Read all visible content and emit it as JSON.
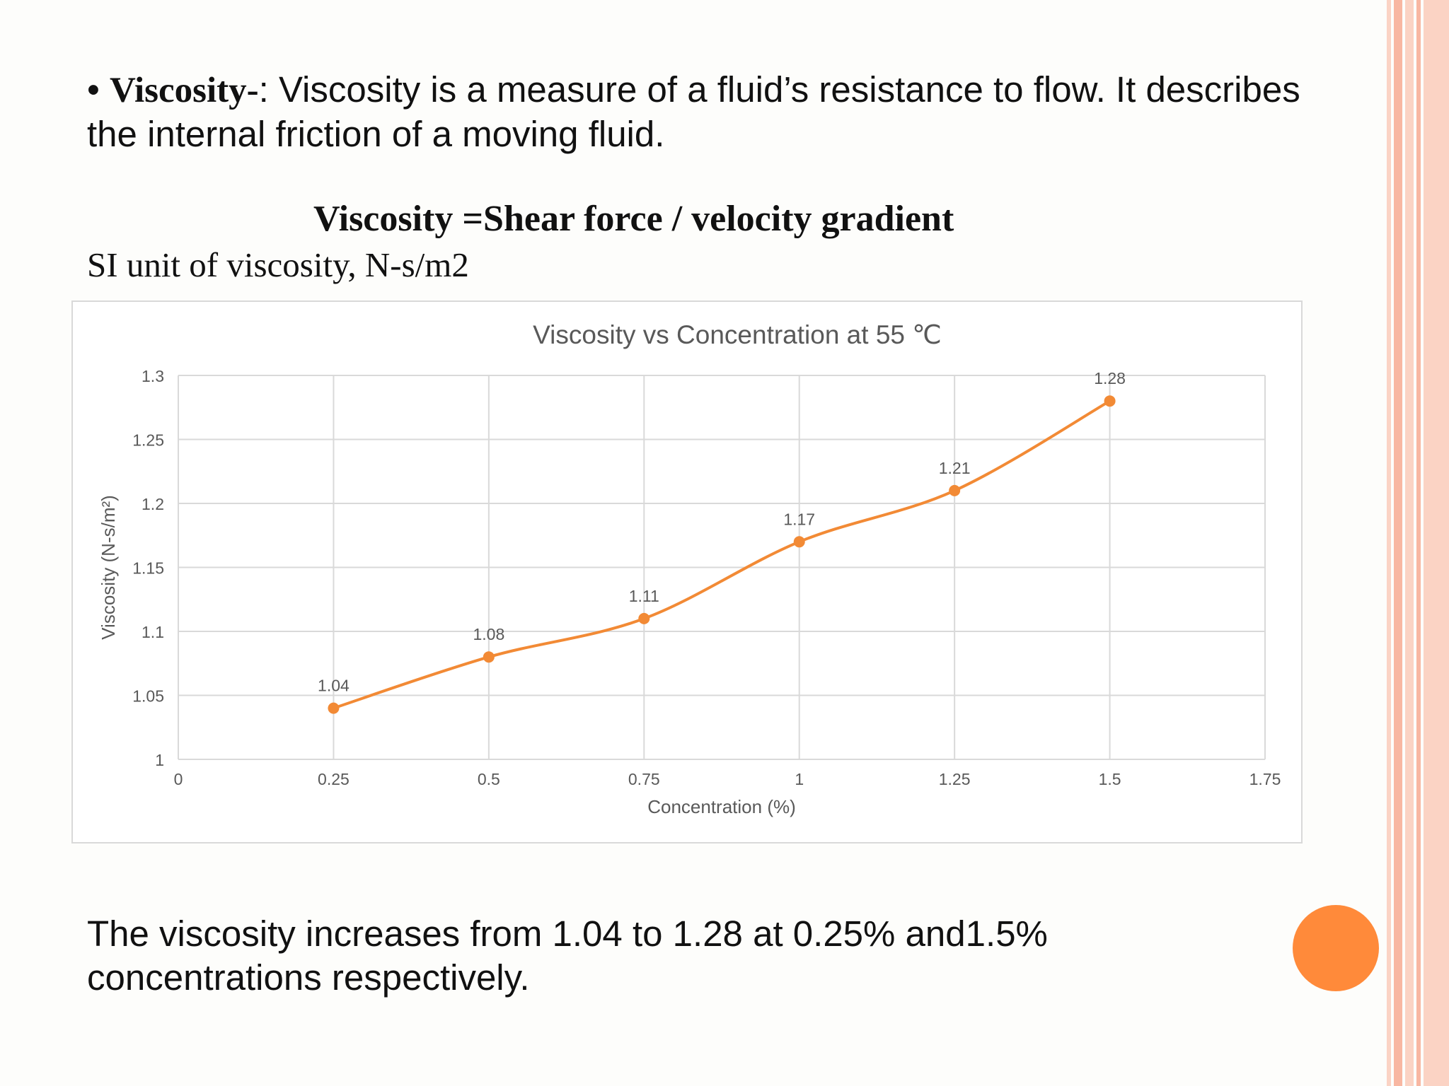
{
  "slide": {
    "bullet": "•",
    "term": "Viscosity-",
    "definition": ": Viscosity is a measure of a fluid’s resistance to flow. It describes the internal friction of a moving fluid.",
    "formula": "Viscosity =Shear force / velocity gradient",
    "si_unit": "SI unit of viscosity, N-s/m2",
    "conclusion": "The viscosity increases from 1.04 to 1.28 at 0.25% and1.5% concentrations respectively."
  },
  "colors": {
    "series": "#f28a35",
    "accent_circle": "#ff8a3a",
    "stripe_light": "#fbd3c4",
    "stripe_mid": "#f8b7a2",
    "grid": "#d9d9d9",
    "axis_text": "#595959",
    "title_text": "#595959"
  },
  "chart_data": {
    "type": "line",
    "title": "Viscosity vs Concentration at 55 ℃",
    "xlabel": "Concentration (%)",
    "ylabel": "Viscosity (N-s/m²)",
    "x": [
      0.25,
      0.5,
      0.75,
      1,
      1.25,
      1.5
    ],
    "y": [
      1.04,
      1.08,
      1.11,
      1.17,
      1.21,
      1.28
    ],
    "data_labels": [
      "1.04",
      "1.08",
      "1.11",
      "1.17",
      "1.21",
      "1.28"
    ],
    "xlim": [
      0,
      1.75
    ],
    "ylim": [
      1,
      1.3
    ],
    "x_ticks": [
      "0",
      "0.25",
      "0.5",
      "0.75",
      "1",
      "1.25",
      "1.5",
      "1.75"
    ],
    "y_ticks": [
      "1",
      "1.05",
      "1.1",
      "1.15",
      "1.2",
      "1.25",
      "1.3"
    ],
    "grid": true,
    "smooth": true,
    "markers": true,
    "legend": "none"
  }
}
